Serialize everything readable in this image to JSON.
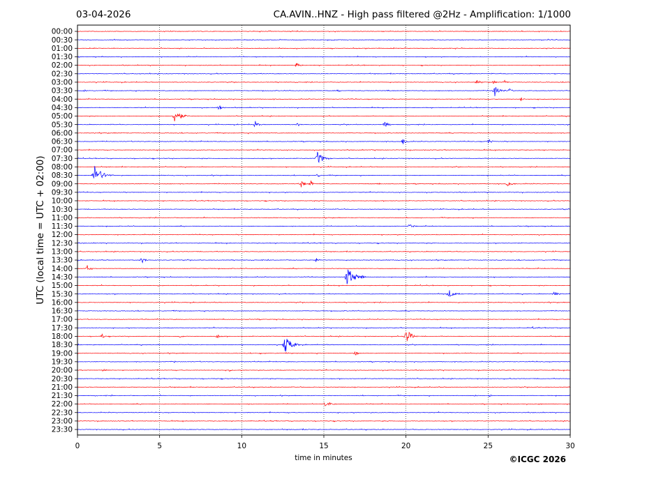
{
  "chart_data": {
    "type": "line",
    "title_left": "03-04-2026",
    "title_right": "CA.AVIN..HNZ - High pass filtered @2Hz - Amplification: 1/1000",
    "xlabel": "time in minutes",
    "ylabel": "UTC (local time = UTC + 02:00)",
    "copyright": "©ICGC 2026",
    "xlim": [
      0,
      30
    ],
    "x_ticks": [
      0,
      5,
      10,
      15,
      20,
      25,
      30
    ],
    "x_tick_labels": [
      "0",
      "5",
      "10",
      "15",
      "20",
      "25",
      "30"
    ],
    "grid": "vertical dotted at every 5 minutes",
    "row_colors": [
      "#ff0000",
      "#0000ff"
    ],
    "rows": [
      {
        "label": "00:00",
        "events": []
      },
      {
        "label": "00:30",
        "events": []
      },
      {
        "label": "01:00",
        "events": []
      },
      {
        "label": "01:30",
        "events": []
      },
      {
        "label": "02:00",
        "events": [
          {
            "t": 13.3,
            "amp": 0.3,
            "dur": 0.7
          }
        ]
      },
      {
        "label": "02:30",
        "events": []
      },
      {
        "label": "03:00",
        "events": [
          {
            "t": 24.3,
            "amp": 0.4,
            "dur": 0.5
          },
          {
            "t": 25.3,
            "amp": 0.25,
            "dur": 0.4
          },
          {
            "t": 26.0,
            "amp": 0.25,
            "dur": 0.4
          }
        ]
      },
      {
        "label": "03:30",
        "events": [
          {
            "t": 0.4,
            "amp": 0.15,
            "dur": 0.5
          },
          {
            "t": 15.9,
            "amp": 0.15,
            "dur": 0.3
          },
          {
            "t": 18.9,
            "amp": 0.15,
            "dur": 0.3
          },
          {
            "t": 25.4,
            "amp": 0.7,
            "dur": 0.8
          },
          {
            "t": 26.3,
            "amp": 0.3,
            "dur": 0.4
          }
        ]
      },
      {
        "label": "04:00",
        "events": [
          {
            "t": 27.0,
            "amp": 0.25,
            "dur": 0.4
          }
        ]
      },
      {
        "label": "04:30",
        "events": [
          {
            "t": 8.6,
            "amp": 0.35,
            "dur": 0.6
          }
        ]
      },
      {
        "label": "05:00",
        "events": [
          {
            "t": 5.9,
            "amp": 0.9,
            "dur": 1.0
          }
        ]
      },
      {
        "label": "05:30",
        "events": [
          {
            "t": 10.8,
            "amp": 0.5,
            "dur": 0.5
          },
          {
            "t": 13.4,
            "amp": 0.25,
            "dur": 0.4
          },
          {
            "t": 18.7,
            "amp": 0.4,
            "dur": 0.6
          }
        ]
      },
      {
        "label": "06:00",
        "events": []
      },
      {
        "label": "06:30",
        "events": [
          {
            "t": 19.8,
            "amp": 0.5,
            "dur": 0.5
          },
          {
            "t": 25.0,
            "amp": 0.35,
            "dur": 0.6
          }
        ]
      },
      {
        "label": "07:00",
        "events": []
      },
      {
        "label": "07:30",
        "events": [
          {
            "t": 14.6,
            "amp": 0.9,
            "dur": 0.9
          }
        ]
      },
      {
        "label": "08:00",
        "events": []
      },
      {
        "label": "08:30",
        "events": [
          {
            "t": 1.0,
            "amp": 1.3,
            "dur": 1.2
          },
          {
            "t": 14.6,
            "amp": 0.3,
            "dur": 0.4
          }
        ]
      },
      {
        "label": "09:00",
        "events": [
          {
            "t": 13.6,
            "amp": 0.55,
            "dur": 0.5
          },
          {
            "t": 14.2,
            "amp": 0.5,
            "dur": 0.3
          },
          {
            "t": 18.3,
            "amp": 0.15,
            "dur": 0.3
          },
          {
            "t": 26.2,
            "amp": 0.45,
            "dur": 0.6
          }
        ]
      },
      {
        "label": "09:30",
        "events": []
      },
      {
        "label": "10:00",
        "events": []
      },
      {
        "label": "10:30",
        "events": [
          {
            "t": 29.5,
            "amp": 0.1,
            "dur": 0.3
          }
        ]
      },
      {
        "label": "11:00",
        "events": []
      },
      {
        "label": "11:30",
        "events": [
          {
            "t": 20.2,
            "amp": 0.35,
            "dur": 0.6
          }
        ]
      },
      {
        "label": "12:00",
        "events": []
      },
      {
        "label": "12:30",
        "events": []
      },
      {
        "label": "13:00",
        "events": []
      },
      {
        "label": "13:30",
        "events": [
          {
            "t": 3.9,
            "amp": 0.4,
            "dur": 0.6
          },
          {
            "t": 14.5,
            "amp": 0.3,
            "dur": 0.5
          }
        ]
      },
      {
        "label": "14:00",
        "events": [
          {
            "t": 0.6,
            "amp": 0.4,
            "dur": 0.5
          }
        ]
      },
      {
        "label": "14:30",
        "events": [
          {
            "t": 16.4,
            "amp": 1.3,
            "dur": 1.1
          },
          {
            "t": 17.3,
            "amp": 0.4,
            "dur": 0.4
          }
        ]
      },
      {
        "label": "15:00",
        "events": []
      },
      {
        "label": "15:30",
        "events": [
          {
            "t": 22.6,
            "amp": 0.55,
            "dur": 0.8
          },
          {
            "t": 29.0,
            "amp": 0.35,
            "dur": 0.6
          }
        ]
      },
      {
        "label": "16:00",
        "events": []
      },
      {
        "label": "16:30",
        "events": []
      },
      {
        "label": "17:00",
        "events": []
      },
      {
        "label": "17:30",
        "events": [
          {
            "t": 27.7,
            "amp": 0.15,
            "dur": 0.8
          }
        ]
      },
      {
        "label": "18:00",
        "events": [
          {
            "t": 1.5,
            "amp": 0.3,
            "dur": 0.4
          },
          {
            "t": 6.2,
            "amp": 0.15,
            "dur": 1.0
          },
          {
            "t": 8.5,
            "amp": 0.3,
            "dur": 0.6
          },
          {
            "t": 20.0,
            "amp": 1.0,
            "dur": 0.8
          }
        ]
      },
      {
        "label": "18:30",
        "events": [
          {
            "t": 12.6,
            "amp": 1.2,
            "dur": 1.0
          }
        ]
      },
      {
        "label": "19:00",
        "events": [
          {
            "t": 11.1,
            "amp": 0.15,
            "dur": 0.3
          },
          {
            "t": 16.9,
            "amp": 0.3,
            "dur": 0.5
          }
        ]
      },
      {
        "label": "19:30",
        "events": [
          {
            "t": 5.9,
            "amp": 0.15,
            "dur": 0.2
          }
        ]
      },
      {
        "label": "20:00",
        "events": [
          {
            "t": 1.6,
            "amp": 0.35,
            "dur": 0.3
          },
          {
            "t": 9.2,
            "amp": 0.2,
            "dur": 0.4
          }
        ]
      },
      {
        "label": "20:30",
        "events": []
      },
      {
        "label": "21:00",
        "events": []
      },
      {
        "label": "21:30",
        "events": [
          {
            "t": 24.2,
            "amp": 0.15,
            "dur": 0.4
          },
          {
            "t": 25.1,
            "amp": 0.2,
            "dur": 0.3
          }
        ]
      },
      {
        "label": "22:00",
        "events": [
          {
            "t": 15.1,
            "amp": 0.45,
            "dur": 0.8
          },
          {
            "t": 28.1,
            "amp": 0.12,
            "dur": 0.4
          }
        ]
      },
      {
        "label": "22:30",
        "events": []
      },
      {
        "label": "23:00",
        "events": []
      },
      {
        "label": "23:30",
        "events": []
      }
    ]
  }
}
